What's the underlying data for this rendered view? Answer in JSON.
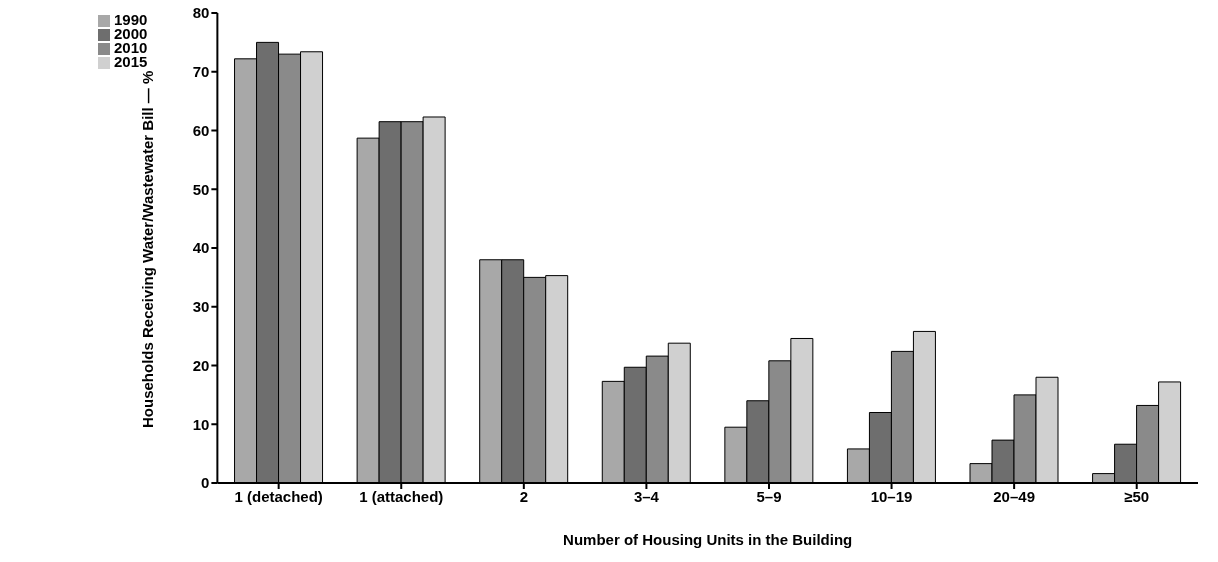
{
  "chart_data": {
    "type": "bar",
    "xlabel": "Number of Housing Units in the Building",
    "ylabel": "Households Receiving Water/Wastewater Bill — %",
    "categories": [
      "1 (detached)",
      "1 (attached)",
      "2",
      "3–4",
      "5–9",
      "10–19",
      "20–49",
      "≥50"
    ],
    "series": [
      {
        "name": "1990",
        "color": "#a8a8a8",
        "values": [
          72.2,
          58.7,
          38,
          17.3,
          9.5,
          5.8,
          3.3,
          1.6
        ]
      },
      {
        "name": "2000",
        "color": "#6e6e6e",
        "values": [
          75,
          61.5,
          38,
          19.7,
          14,
          12,
          7.3,
          6.6
        ]
      },
      {
        "name": "2010",
        "color": "#8a8a8a",
        "values": [
          73,
          61.5,
          35,
          21.6,
          20.8,
          22.4,
          15,
          13.2
        ]
      },
      {
        "name": "2015",
        "color": "#d0d0d0",
        "values": [
          73.4,
          62.3,
          35.3,
          23.8,
          24.6,
          25.8,
          18,
          17.2
        ]
      }
    ],
    "ylim": [
      0,
      80
    ],
    "yticks": [
      0,
      10,
      20,
      30,
      40,
      50,
      60,
      70,
      80
    ],
    "grid": false,
    "legend": "top left"
  }
}
